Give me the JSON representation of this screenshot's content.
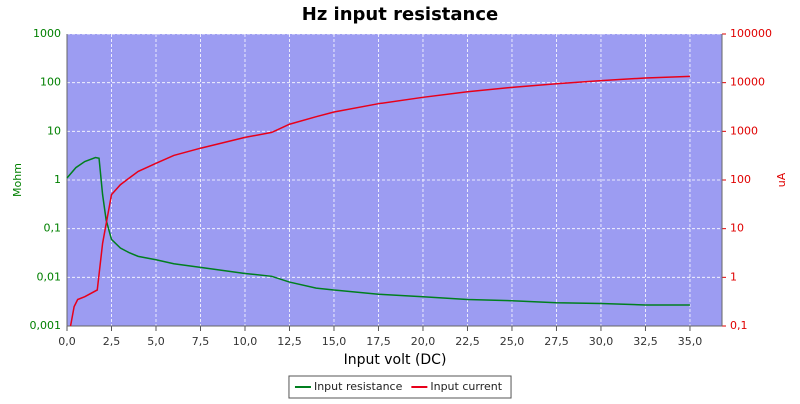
{
  "chart_data": {
    "type": "line",
    "title": "Hz input resistance",
    "xlabel": "Input volt (DC)",
    "ylabel": "Mohm",
    "y2label": "uA",
    "xlim": [
      0,
      36.8
    ],
    "ylim": [
      0.001,
      1000
    ],
    "y2lim": [
      0.1,
      100000
    ],
    "ylog": true,
    "y2log": true,
    "grid": true,
    "legend": "bottom",
    "background": "#9c9cf2",
    "xticks": [
      {
        "value": 0,
        "label": "0,0"
      },
      {
        "value": 2.5,
        "label": "2,5"
      },
      {
        "value": 5,
        "label": "5,0"
      },
      {
        "value": 7.5,
        "label": "7,5"
      },
      {
        "value": 10,
        "label": "10,0"
      },
      {
        "value": 12.5,
        "label": "12,5"
      },
      {
        "value": 15,
        "label": "15,0"
      },
      {
        "value": 17.5,
        "label": "17,5"
      },
      {
        "value": 20,
        "label": "20,0"
      },
      {
        "value": 22.5,
        "label": "22,5"
      },
      {
        "value": 25,
        "label": "25,0"
      },
      {
        "value": 27.5,
        "label": "27,5"
      },
      {
        "value": 30,
        "label": "30,0"
      },
      {
        "value": 32.5,
        "label": "32,5"
      },
      {
        "value": 35,
        "label": "35,0"
      }
    ],
    "yticks": [
      {
        "value": 0.001,
        "label": "0,001"
      },
      {
        "value": 0.01,
        "label": "0,01"
      },
      {
        "value": 0.1,
        "label": "0,1"
      },
      1,
      10,
      100,
      1000
    ],
    "y2ticks": [
      {
        "value": 0.1,
        "label": "0,1"
      },
      1,
      10,
      100,
      1000,
      10000,
      100000
    ],
    "series": [
      {
        "name": "Input resistance",
        "color": "#007f1f",
        "axis": "y",
        "x": [
          0,
          0.5,
          1.0,
          1.6,
          1.8,
          2.0,
          2.2,
          2.5,
          3,
          3.5,
          4,
          5,
          6,
          7.5,
          10,
          11.5,
          12.5,
          14,
          15,
          17.5,
          20,
          22.5,
          25,
          27.5,
          30,
          32.5,
          35
        ],
        "values": [
          1.1,
          1.8,
          2.4,
          2.9,
          2.8,
          0.5,
          0.15,
          0.06,
          0.04,
          0.032,
          0.027,
          0.023,
          0.019,
          0.016,
          0.012,
          0.0105,
          0.008,
          0.006,
          0.0055,
          0.0045,
          0.004,
          0.0035,
          0.0033,
          0.003,
          0.0029,
          0.0027,
          0.0027
        ]
      },
      {
        "name": "Input current",
        "color": "#e8001a",
        "axis": "y2",
        "x": [
          0.2,
          0.4,
          0.6,
          1.0,
          1.7,
          2.0,
          2.5,
          3,
          3.5,
          4,
          5,
          6,
          7.5,
          10,
          11.5,
          12.5,
          14,
          15,
          17.5,
          20,
          22.5,
          25,
          27.5,
          30,
          32.5,
          35
        ],
        "values": [
          0.1,
          0.25,
          0.35,
          0.4,
          0.55,
          5,
          50,
          80,
          110,
          150,
          220,
          320,
          450,
          750,
          950,
          1400,
          2000,
          2500,
          3700,
          5000,
          6500,
          8000,
          9500,
          11000,
          12500,
          13500
        ]
      }
    ]
  }
}
